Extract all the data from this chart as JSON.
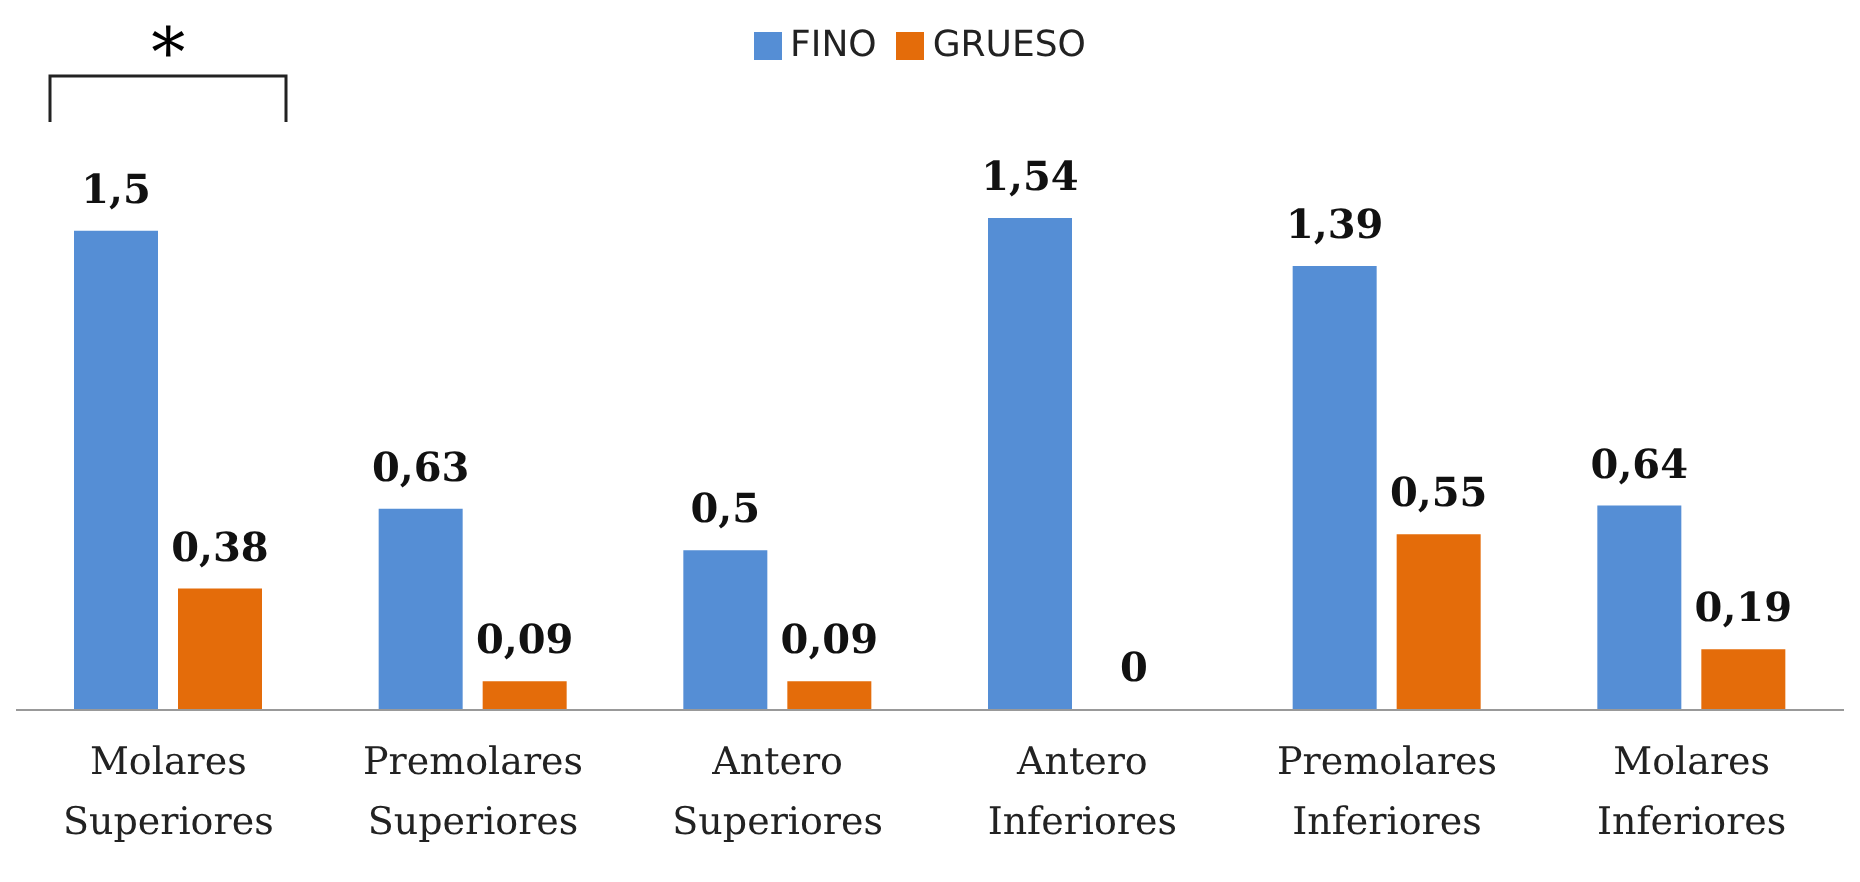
{
  "chart_data": {
    "type": "bar",
    "categories": [
      "Molares Superiores",
      "Premolares Superiores",
      "Antero Superiores",
      "Antero Inferiores",
      "Premolares Inferiores",
      "Molares Inferiores"
    ],
    "series": [
      {
        "name": "FINO",
        "color": "#558ed5",
        "values": [
          1.5,
          0.63,
          0.5,
          1.54,
          1.39,
          0.64
        ],
        "value_labels": [
          "1,5",
          "0,63",
          "0,5",
          "1,54",
          "1,39",
          "0,64"
        ]
      },
      {
        "name": "GRUESO",
        "color": "#e46c0a",
        "values": [
          0.38,
          0.09,
          0.09,
          0,
          0.55,
          0.19
        ],
        "value_labels": [
          "0,38",
          "0,09",
          "0,09",
          "0",
          "0,55",
          "0,19"
        ]
      }
    ],
    "legend": "top",
    "annotations": [
      "*"
    ]
  }
}
